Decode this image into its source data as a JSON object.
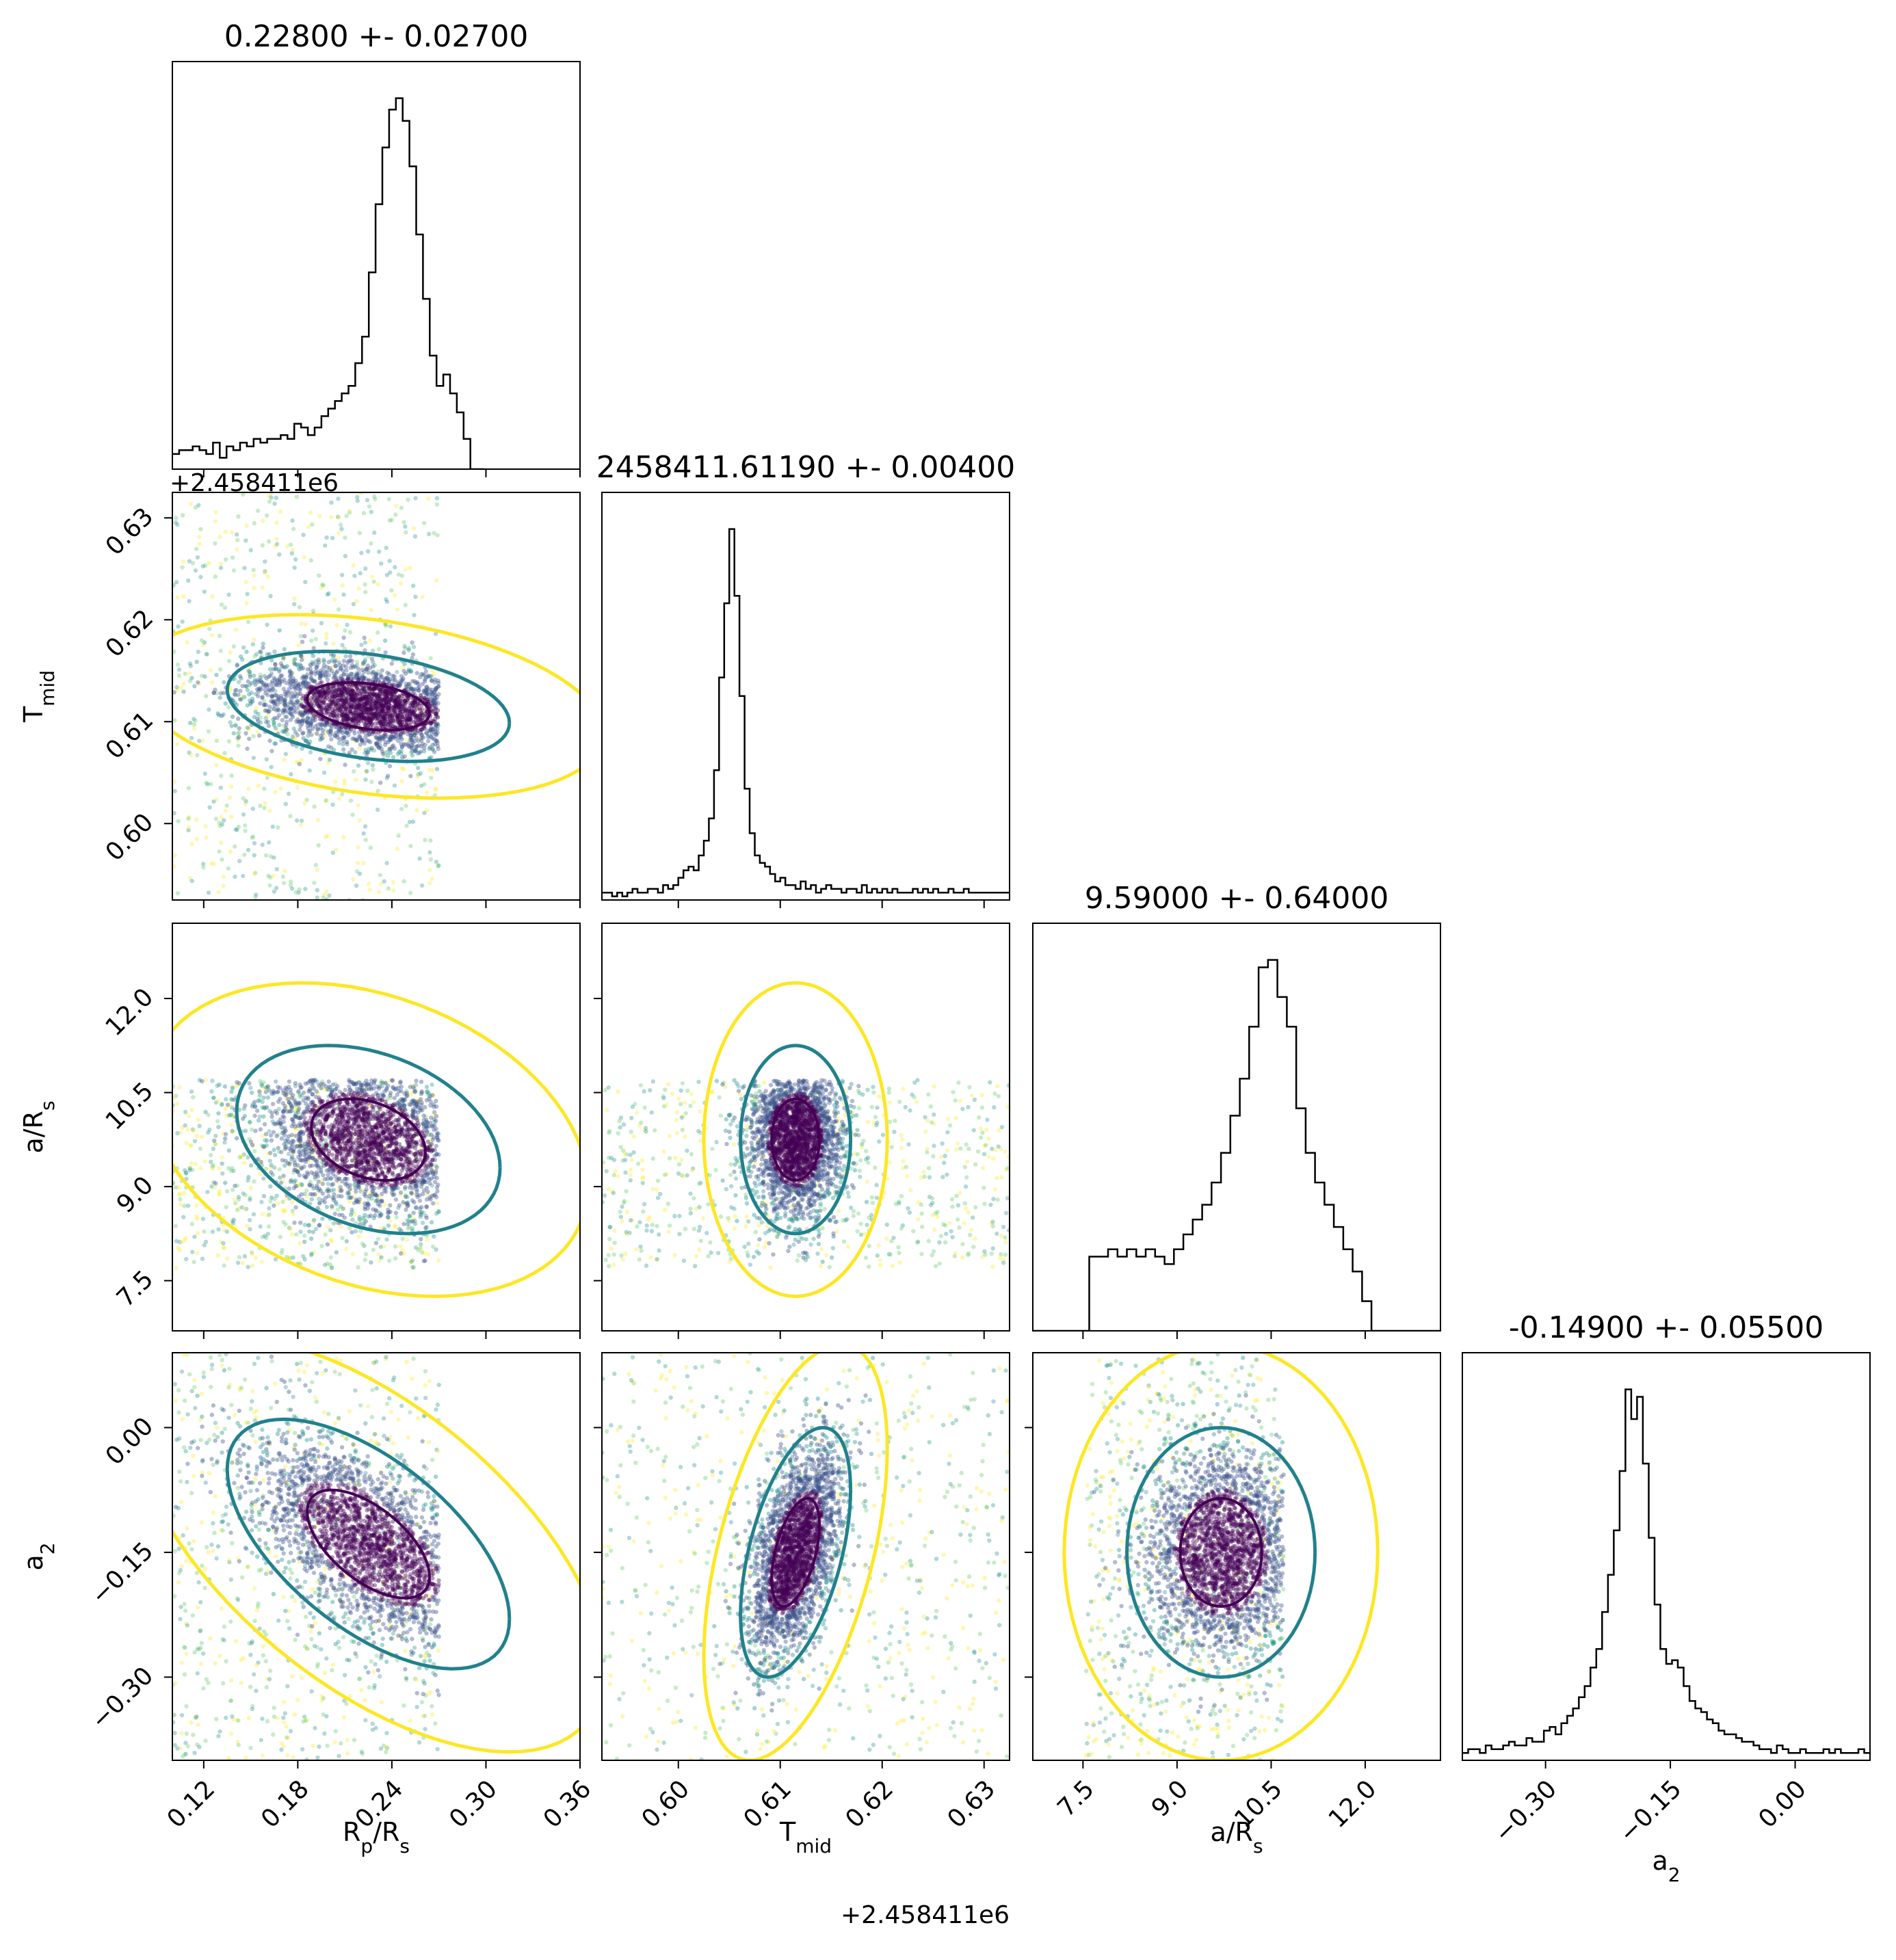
{
  "chart_data": {
    "type": "corner",
    "parameters": [
      "Rp/Rs",
      "Tmid",
      "a/Rs",
      "a2"
    ],
    "axis_labels": {
      "Rp/Rs": {
        "main": "R",
        "sub": "p",
        "tail": "/R",
        "sub2": "s"
      },
      "Tmid": {
        "main": "T",
        "sub": "mid"
      },
      "a/Rs": {
        "main": "a/R",
        "sub": "s"
      },
      "a2": {
        "main": "a",
        "sub": "2"
      }
    },
    "titles": [
      "0.22800 +- 0.02700",
      "2458411.61190 +- 0.00400",
      "9.59000 +- 0.64000",
      "-0.14900 +- 0.05500"
    ],
    "offset_text": "+2.458411e6",
    "ranges": {
      "Rp/Rs": [
        0.1,
        0.36
      ],
      "Tmid": [
        0.5925,
        0.6325
      ],
      "a/Rs": [
        6.7,
        13.2
      ],
      "a2": [
        -0.4,
        0.09
      ]
    },
    "ticks": {
      "Rp/Rs": {
        "values": [
          0.12,
          0.18,
          0.24,
          0.3,
          0.36
        ],
        "labels": [
          "0.12",
          "0.18",
          "0.24",
          "0.30",
          "0.36"
        ]
      },
      "Tmid": {
        "values": [
          0.6,
          0.61,
          0.62,
          0.63
        ],
        "labels": [
          "0.60",
          "0.61",
          "0.62",
          "0.63"
        ]
      },
      "a/Rs": {
        "values": [
          7.5,
          9.0,
          10.5,
          12.0
        ],
        "labels": [
          "7.5",
          "9.0",
          "10.5",
          "12.0"
        ]
      },
      "a2": {
        "values": [
          -0.3,
          -0.15,
          0.0
        ],
        "labels": [
          "−0.30",
          "−0.15",
          "0.00"
        ]
      }
    },
    "histograms": [
      {
        "param": "Rp/Rs",
        "bin_start": 0.1,
        "bin_width": 0.00432,
        "counts": [
          4,
          5,
          5,
          6,
          5,
          4,
          7,
          3,
          6,
          5,
          7,
          6,
          8,
          7,
          8,
          8,
          9,
          8,
          12,
          11,
          9,
          11,
          14,
          16,
          18,
          20,
          22,
          28,
          35,
          52,
          70,
          85,
          95,
          98,
          92,
          80,
          62,
          45,
          30,
          22,
          25,
          20,
          15,
          8,
          0,
          0
        ]
      },
      {
        "param": "Tmid",
        "bin_start": 0.5925,
        "bin_width": 0.0005,
        "counts": [
          2,
          2,
          1,
          2,
          1,
          2,
          3,
          2,
          2,
          3,
          3,
          2,
          4,
          3,
          4,
          6,
          8,
          9,
          8,
          12,
          16,
          22,
          35,
          60,
          80,
          100,
          82,
          55,
          30,
          18,
          12,
          10,
          9,
          7,
          5,
          6,
          4,
          4,
          3,
          5,
          3,
          4,
          2,
          3,
          4,
          3,
          3,
          2,
          3,
          3,
          2,
          4,
          2,
          3,
          2,
          3,
          2,
          3,
          2,
          2,
          2,
          3,
          2,
          3,
          2,
          3,
          2,
          2,
          3,
          2,
          2,
          3,
          2,
          2,
          2,
          2,
          2,
          2,
          2,
          2
        ]
      },
      {
        "param": "a/Rs",
        "bin_start": 6.7,
        "bin_width": 0.15,
        "counts": [
          0,
          0,
          0,
          0,
          0,
          0,
          20,
          20,
          22,
          20,
          22,
          20,
          22,
          20,
          18,
          22,
          26,
          30,
          34,
          40,
          48,
          58,
          68,
          82,
          98,
          100,
          90,
          82,
          60,
          48,
          40,
          34,
          28,
          22,
          16,
          8,
          0,
          0,
          0,
          0,
          0,
          0,
          0,
          0
        ]
      },
      {
        "param": "a2",
        "bin_start": -0.4,
        "bin_width": 0.007,
        "counts": [
          2,
          3,
          3,
          2,
          4,
          3,
          3,
          4,
          5,
          4,
          4,
          6,
          5,
          5,
          8,
          9,
          7,
          10,
          12,
          14,
          17,
          20,
          25,
          30,
          40,
          50,
          62,
          78,
          100,
          92,
          98,
          80,
          60,
          42,
          30,
          26,
          27,
          25,
          20,
          16,
          14,
          13,
          11,
          10,
          8,
          7,
          7,
          6,
          5,
          5,
          4,
          3,
          3,
          2,
          4,
          3,
          2,
          2,
          3,
          2,
          2,
          2,
          3,
          2,
          3,
          2,
          2,
          2,
          3,
          2
        ]
      }
    ],
    "pair_panels": [
      {
        "x": "Rp/Rs",
        "y": "Tmid",
        "center": [
          0.225,
          0.6115
        ],
        "sd": [
          0.03,
          0.0018
        ],
        "corr": -0.3,
        "scatter_xlim": [
          0.1,
          0.27
        ]
      },
      {
        "x": "Rp/Rs",
        "y": "a/Rs",
        "center": [
          0.225,
          9.75
        ],
        "sd": [
          0.028,
          0.5
        ],
        "corr": -0.3,
        "scatter_xlim": [
          0.1,
          0.27
        ],
        "scatter_ylim": [
          7.7,
          10.7
        ]
      },
      {
        "x": "Rp/Rs",
        "y": "a2",
        "center": [
          0.225,
          -0.14
        ],
        "sd": [
          0.03,
          0.05
        ],
        "corr": -0.6,
        "scatter_xlim": [
          0.1,
          0.27
        ]
      },
      {
        "x": "Tmid",
        "y": "a/Rs",
        "center": [
          0.6115,
          9.75
        ],
        "sd": [
          0.0018,
          0.5
        ],
        "corr": 0.0,
        "scatter_ylim": [
          7.7,
          10.7
        ]
      },
      {
        "x": "Tmid",
        "y": "a2",
        "center": [
          0.6115,
          -0.15
        ],
        "sd": [
          0.0018,
          0.05
        ],
        "corr": 0.5
      },
      {
        "x": "a/Rs",
        "y": "a2",
        "center": [
          9.7,
          -0.15
        ],
        "sd": [
          0.5,
          0.05
        ],
        "corr": 0.0,
        "scatter_xlim": [
          7.55,
          10.7
        ]
      }
    ],
    "contour_colors": {
      "inner": "#440154",
      "middle": "#21818c",
      "outer": "#fde725"
    },
    "point_colormap": [
      "#440154",
      "#3b528b",
      "#21918c",
      "#5ec962",
      "#fde725"
    ]
  }
}
